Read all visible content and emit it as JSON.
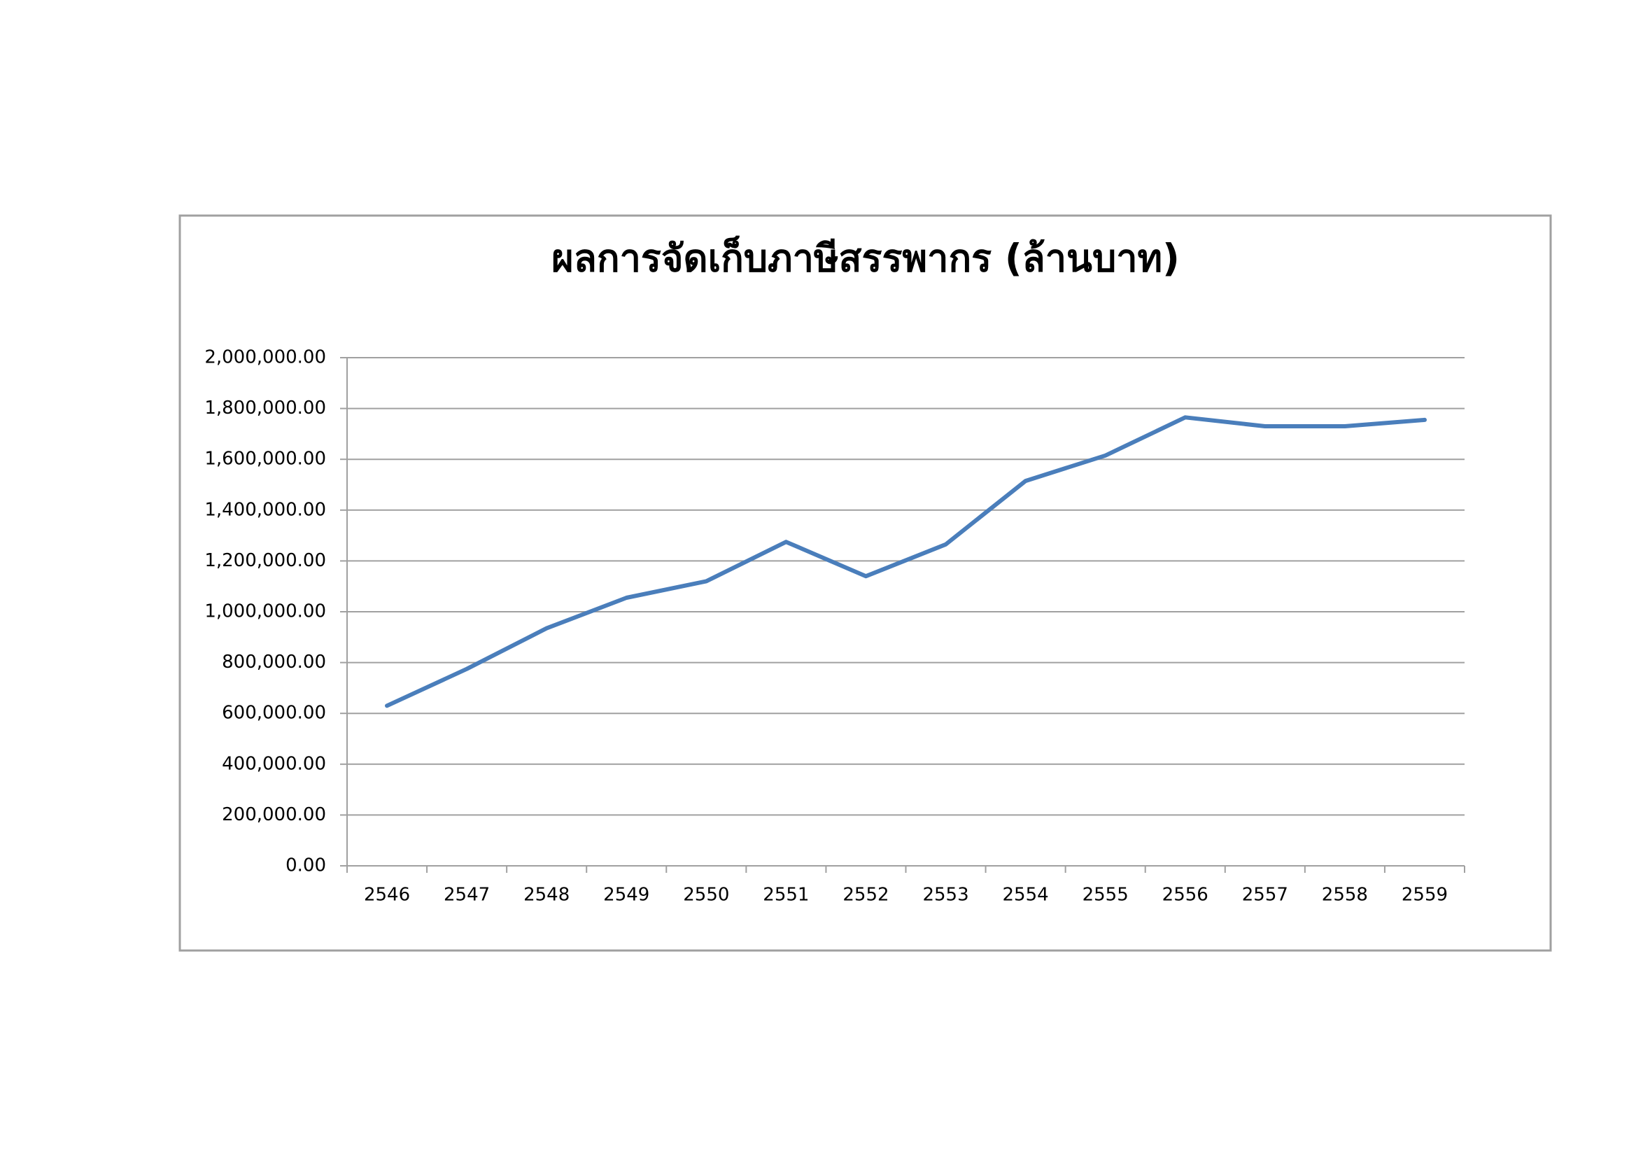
{
  "chart_data": {
    "type": "line",
    "title": "ผลการจัดเก็บภาษีสรรพากร (ล้านบาท)",
    "categories": [
      "2546",
      "2547",
      "2548",
      "2549",
      "2550",
      "2551",
      "2552",
      "2553",
      "2554",
      "2555",
      "2556",
      "2557",
      "2558",
      "2559"
    ],
    "series": [
      {
        "color": "#4a7ebb",
        "values": [
          630000,
          775000,
          935000,
          1055000,
          1120000,
          1275000,
          1140000,
          1265000,
          1515000,
          1615000,
          1765000,
          1730000,
          1730000,
          1755000
        ]
      }
    ],
    "ylim": [
      0,
      2000000
    ],
    "yticks": [
      {
        "value": 0,
        "label": "0.00"
      },
      {
        "value": 200000,
        "label": "200,000.00"
      },
      {
        "value": 400000,
        "label": "400,000.00"
      },
      {
        "value": 600000,
        "label": "600,000.00"
      },
      {
        "value": 800000,
        "label": "800,000.00"
      },
      {
        "value": 1000000,
        "label": "1,000,000.00"
      },
      {
        "value": 1200000,
        "label": "1,200,000.00"
      },
      {
        "value": 1400000,
        "label": "1,400,000.00"
      },
      {
        "value": 1600000,
        "label": "1,600,000.00"
      },
      {
        "value": 1800000,
        "label": "1,800,000.00"
      },
      {
        "value": 2000000,
        "label": "2,000,000.00"
      }
    ],
    "grid": true
  }
}
